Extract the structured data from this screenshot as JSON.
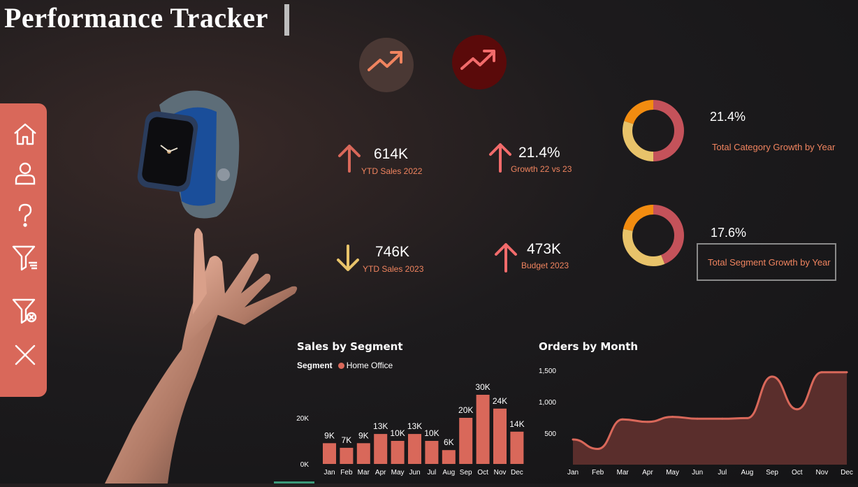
{
  "header": {
    "title": "Performance Tracker"
  },
  "sidebar": {
    "items": [
      {
        "icon": "home-icon"
      },
      {
        "icon": "user-icon"
      },
      {
        "icon": "help-icon"
      },
      {
        "icon": "filter-icon"
      },
      {
        "icon": "clear-filter-icon"
      },
      {
        "icon": "close-icon"
      }
    ]
  },
  "kpis": {
    "ytd_2022": {
      "value": "614K",
      "label": "YTD Sales 2022"
    },
    "growth": {
      "value": "21.4%",
      "label": "Growth 22 vs 23"
    },
    "ytd_2023": {
      "value": "746K",
      "label": "YTD Sales 2023"
    },
    "budget": {
      "value": "473K",
      "label": "Budget 2023"
    }
  },
  "donuts": {
    "category": {
      "value": "21.4%",
      "label": "Total Category Growth by Year"
    },
    "segment": {
      "value": "17.6%",
      "label": "Total Segment Growth by Year"
    }
  },
  "colors": {
    "accent": "#d9685a",
    "orange": "#f0845f",
    "gold": "#e8c36a",
    "amber": "#f28c10"
  },
  "chart_data": [
    {
      "type": "bar",
      "title": "Sales by Segment",
      "legend_title": "Segment",
      "legend": [
        "Home Office"
      ],
      "categories": [
        "Jan",
        "Feb",
        "Mar",
        "Apr",
        "May",
        "Jun",
        "Jul",
        "Aug",
        "Sep",
        "Oct",
        "Nov",
        "Dec"
      ],
      "series": [
        {
          "name": "Home Office",
          "values": [
            9000,
            7000,
            9000,
            13000,
            10000,
            13000,
            10000,
            6000,
            20000,
            30000,
            24000,
            14000
          ]
        }
      ],
      "data_labels": [
        "9K",
        "7K",
        "9K",
        "13K",
        "10K",
        "13K",
        "10K",
        "6K",
        "20K",
        "30K",
        "24K",
        "14K"
      ],
      "yticks": [
        "0K",
        "20K"
      ],
      "ylim": [
        0,
        30000
      ]
    },
    {
      "type": "area",
      "title": "Orders by Month",
      "categories": [
        "Jan",
        "Feb",
        "Mar",
        "Apr",
        "May",
        "Jun",
        "Jul",
        "Aug",
        "Sep",
        "Oct",
        "Nov",
        "Dec"
      ],
      "values": [
        400,
        250,
        720,
        680,
        760,
        730,
        730,
        740,
        1400,
        880,
        1470,
        1470
      ],
      "yticks": [
        "500",
        "1,000",
        "1,500"
      ],
      "ylim": [
        0,
        1500
      ]
    }
  ]
}
